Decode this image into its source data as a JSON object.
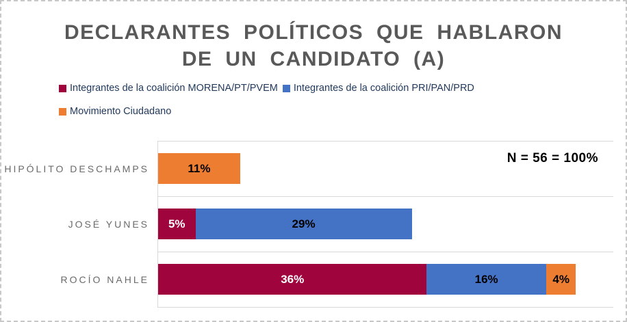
{
  "window": {
    "background_color": "#FFFFFF",
    "border_color": "#C8C8C8"
  },
  "chart_data": {
    "type": "bar",
    "orientation": "horizontal-stacked",
    "title": "DECLARANTES POLÍTICOS QUE HABLARON DE UN CANDIDATO (A)",
    "title_lines": [
      "DECLARANTES POLÍTICOS QUE HABLARON",
      "DE UN CANDIDATO (A)"
    ],
    "title_color": "#595959",
    "categories": [
      "HIPÓLITO DESCHAMPS",
      "JOSÉ YUNES",
      "ROCÍO NAHLE"
    ],
    "series": [
      {
        "name": "Integrantes de la coalición MORENA/PT/PVEM",
        "color": "#A0043C",
        "label_color": "#FFFFFF",
        "values": [
          0,
          5,
          36
        ]
      },
      {
        "name": "Integrantes de la coalición PRI/PAN/PRD",
        "color": "#4472C4",
        "label_color": "#000000",
        "values": [
          0,
          29,
          16
        ]
      },
      {
        "name": "Movimiento Ciudadano",
        "color": "#ED7D31",
        "label_color": "#000000",
        "values": [
          11,
          0,
          4
        ]
      }
    ],
    "value_suffix": "%",
    "annotation": "N = 56 = 100%",
    "axis": {
      "xmin": 0,
      "xmax": 61,
      "gridline_color": "#D9D9D9",
      "category_label_color": "#6A6A6A"
    },
    "legend_position": "top-left",
    "legend_text_color": "#223A5E"
  }
}
